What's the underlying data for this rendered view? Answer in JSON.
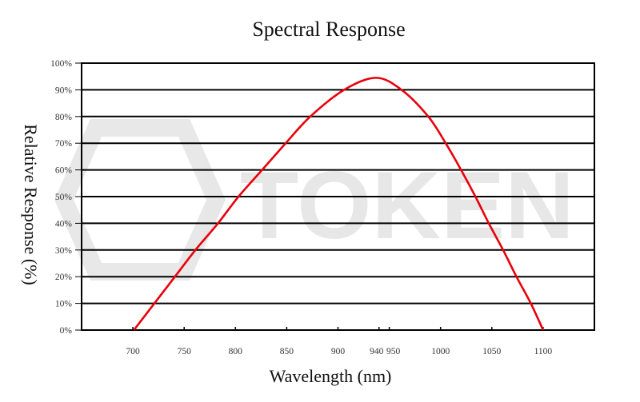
{
  "chart_data": {
    "type": "line",
    "title": "Spectral Response",
    "xlabel": "Wavelength (nm)",
    "ylabel": "Relative Response (%)",
    "xlim": [
      650,
      1150
    ],
    "ylim": [
      0,
      100
    ],
    "x_ticks": [
      700,
      750,
      800,
      850,
      900,
      940,
      950,
      1000,
      1050,
      1100
    ],
    "x_tick_labels": [
      "700",
      "750",
      "800",
      "850",
      "900",
      "940",
      "950",
      "1000",
      "1050",
      "1100"
    ],
    "y_ticks": [
      0,
      10,
      20,
      30,
      40,
      50,
      60,
      70,
      80,
      90,
      100
    ],
    "y_tick_labels": [
      "0%",
      "10%",
      "20%",
      "30%",
      "40%",
      "50%",
      "60%",
      "70%",
      "80%",
      "90%",
      "100%"
    ],
    "grid": "horizontal",
    "series": [
      {
        "color": "#e8000b",
        "x": [
          701,
          721,
          741,
          761,
          783,
          803,
          826,
          849,
          873,
          906,
          937,
          962,
          988,
          1005,
          1020,
          1034,
          1047,
          1061,
          1074,
          1088,
          1100
        ],
        "y": [
          0,
          10,
          20,
          30,
          40,
          50,
          60,
          70,
          80,
          90,
          94.5,
          90,
          80,
          70,
          60,
          50,
          40,
          30,
          20,
          10,
          0
        ]
      }
    ],
    "watermark": "TOKEN"
  }
}
